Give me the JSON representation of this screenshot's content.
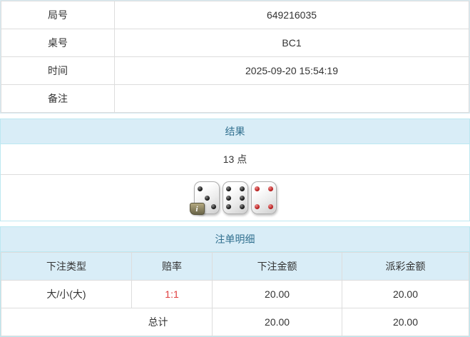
{
  "info_table": {
    "rows": [
      {
        "label": "局号",
        "value": "649216035"
      },
      {
        "label": "桌号",
        "value": "BC1"
      },
      {
        "label": "时间",
        "value": "2025-09-20 15:54:19"
      },
      {
        "label": "备注",
        "value": ""
      }
    ]
  },
  "result_panel": {
    "title": "结果",
    "points": "13 点",
    "dice": [
      {
        "value": 3,
        "pip_color": "black",
        "info_badge": true
      },
      {
        "value": 6,
        "pip_color": "black",
        "info_badge": false
      },
      {
        "value": 4,
        "pip_color": "red",
        "info_badge": false
      }
    ],
    "info_icon_glyph": "i"
  },
  "bet_panel": {
    "title": "注单明细",
    "columns": [
      "下注类型",
      "赔率",
      "下注金额",
      "派彩金额"
    ],
    "rows": [
      {
        "bet_type": "大/小(大)",
        "odds": "1:1",
        "bet_amount": "20.00",
        "payout_amount": "20.00"
      }
    ],
    "total": {
      "label": "总计",
      "bet_amount": "20.00",
      "payout_amount": "20.00"
    }
  },
  "colors": {
    "panel_header_bg": "#d9edf7",
    "panel_header_text": "#31708f",
    "panel_border": "#bce8f1",
    "cell_border": "#dddddd",
    "body_text": "#333333",
    "odds_text": "#e03c3c",
    "black_pip": "#141414",
    "red_pip": "#b51d1d",
    "info_badge_bg": "#6a6549"
  }
}
